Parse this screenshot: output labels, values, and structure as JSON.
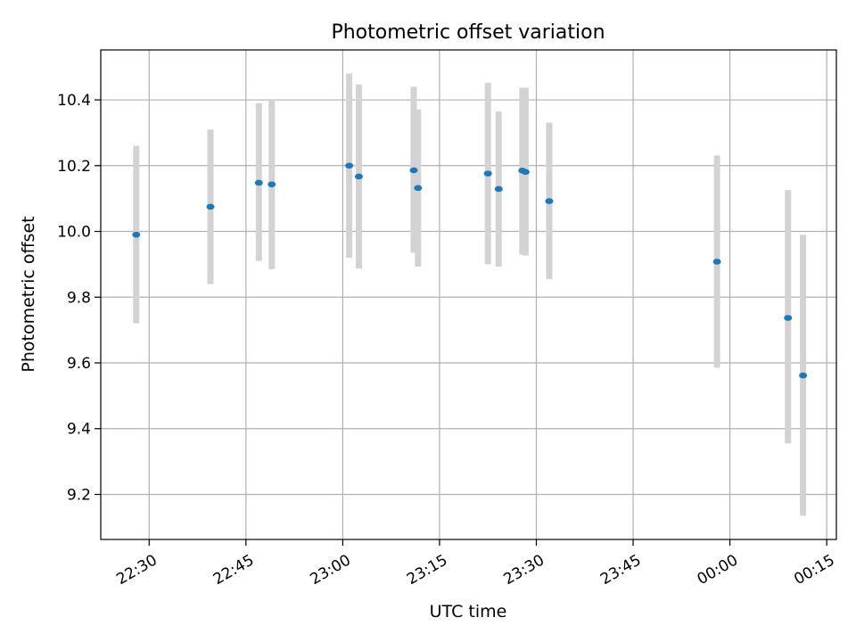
{
  "chart_data": {
    "type": "scatter",
    "title": "Photometric offset variation",
    "xlabel": "UTC time",
    "ylabel": "Photometric offset",
    "x_unit": "UTC time (hh:mm)",
    "xlim": [
      "22:22:30",
      "00:16:30"
    ],
    "ylim": [
      9.063,
      10.552
    ],
    "grid": true,
    "x_ticks": [
      "22:30",
      "22:45",
      "23:00",
      "23:15",
      "23:30",
      "23:45",
      "00:00",
      "00:15"
    ],
    "y_ticks": [
      "9.2",
      "9.4",
      "9.6",
      "9.8",
      "10.0",
      "10.2",
      "10.4"
    ],
    "y_tick_values": [
      9.2,
      9.4,
      9.6,
      9.8,
      10.0,
      10.2,
      10.4
    ],
    "colors": {
      "point": "#1f77b4",
      "errorbar": "#d3d3d3",
      "grid": "#b0b0b0"
    },
    "points": [
      {
        "x": "22:28",
        "y": 9.99,
        "yerr_low": 9.72,
        "yerr_high": 10.26
      },
      {
        "x": "22:39:30",
        "y": 10.075,
        "yerr_low": 9.84,
        "yerr_high": 10.31
      },
      {
        "x": "22:47",
        "y": 10.148,
        "yerr_low": 9.91,
        "yerr_high": 10.39
      },
      {
        "x": "22:49",
        "y": 10.143,
        "yerr_low": 9.885,
        "yerr_high": 10.4
      },
      {
        "x": "23:01",
        "y": 10.2,
        "yerr_low": 9.92,
        "yerr_high": 10.48
      },
      {
        "x": "23:02:30",
        "y": 10.167,
        "yerr_low": 9.887,
        "yerr_high": 10.447
      },
      {
        "x": "23:11",
        "y": 10.186,
        "yerr_low": 9.935,
        "yerr_high": 10.44
      },
      {
        "x": "23:11:40",
        "y": 10.132,
        "yerr_low": 9.893,
        "yerr_high": 10.371
      },
      {
        "x": "23:22:30",
        "y": 10.176,
        "yerr_low": 9.9,
        "yerr_high": 10.452
      },
      {
        "x": "23:24:10",
        "y": 10.129,
        "yerr_low": 9.893,
        "yerr_high": 10.365
      },
      {
        "x": "23:27:50",
        "y": 10.185,
        "yerr_low": 9.93,
        "yerr_high": 10.437
      },
      {
        "x": "23:28:20",
        "y": 10.181,
        "yerr_low": 9.927,
        "yerr_high": 10.437
      },
      {
        "x": "23:32",
        "y": 10.092,
        "yerr_low": 9.855,
        "yerr_high": 10.331
      },
      {
        "x": "23:58",
        "y": 9.908,
        "yerr_low": 9.585,
        "yerr_high": 10.231
      },
      {
        "x": "00:09",
        "y": 9.737,
        "yerr_low": 9.355,
        "yerr_high": 10.126
      },
      {
        "x": "00:11:20",
        "y": 9.562,
        "yerr_low": 9.135,
        "yerr_high": 9.99
      }
    ]
  }
}
